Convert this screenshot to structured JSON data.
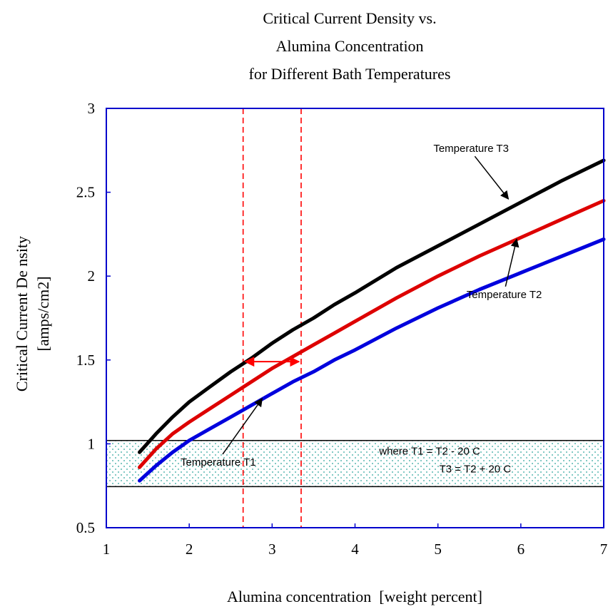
{
  "chart_data": {
    "type": "line",
    "title_lines": [
      "Critical Current Density vs.",
      "Alumina Concentration",
      "for Different Bath Temperatures"
    ],
    "xlabel": "Alumina concentration  [weight percent]",
    "ylabel_lines": [
      "Critical Current De nsity",
      "[amps/cm2]"
    ],
    "xlim": [
      1,
      7
    ],
    "ylim": [
      0.5,
      3
    ],
    "x_ticks": [
      1,
      2,
      3,
      4,
      5,
      6,
      7
    ],
    "x_tick_labels": [
      "1",
      "2",
      "3",
      "4",
      "5",
      "6",
      "7"
    ],
    "y_ticks": [
      0.5,
      1,
      1.5,
      2,
      2.5,
      3
    ],
    "y_tick_labels": [
      "0.5",
      "1",
      "1.5",
      "2",
      "2.5",
      "3"
    ],
    "series": [
      {
        "name": "Temperature T3",
        "color": "#000000",
        "x": [
          1.4,
          1.6,
          1.8,
          2,
          2.25,
          2.5,
          2.75,
          3,
          3.25,
          3.5,
          3.75,
          4,
          4.5,
          5,
          5.5,
          6,
          6.5,
          7
        ],
        "y": [
          0.95,
          1.06,
          1.16,
          1.25,
          1.34,
          1.43,
          1.51,
          1.6,
          1.68,
          1.75,
          1.83,
          1.9,
          2.05,
          2.18,
          2.31,
          2.44,
          2.57,
          2.69
        ]
      },
      {
        "name": "Temperature T2",
        "color": "#dd0000",
        "x": [
          1.4,
          1.6,
          1.8,
          2,
          2.25,
          2.5,
          2.75,
          3,
          3.25,
          3.5,
          3.75,
          4,
          4.5,
          5,
          5.5,
          6,
          6.5,
          7
        ],
        "y": [
          0.86,
          0.97,
          1.06,
          1.13,
          1.21,
          1.29,
          1.37,
          1.45,
          1.52,
          1.59,
          1.66,
          1.73,
          1.87,
          2.0,
          2.12,
          2.23,
          2.34,
          2.45
        ]
      },
      {
        "name": "Temperature T1",
        "color": "#0000dd",
        "x": [
          1.4,
          1.6,
          1.8,
          2,
          2.25,
          2.5,
          2.75,
          3,
          3.25,
          3.5,
          3.75,
          4,
          4.5,
          5,
          5.5,
          6,
          6.5,
          7
        ],
        "y": [
          0.78,
          0.87,
          0.95,
          1.02,
          1.09,
          1.16,
          1.23,
          1.3,
          1.37,
          1.43,
          1.5,
          1.56,
          1.69,
          1.81,
          1.92,
          2.02,
          2.12,
          2.22
        ]
      }
    ],
    "reference_lines": {
      "vertical_x": [
        2.65,
        3.35
      ],
      "color": "#ff0000",
      "style": "dashed"
    },
    "double_arrow": {
      "x_from": 2.65,
      "x_to": 3.35,
      "y": 1.49,
      "color": "#ff0000"
    },
    "shaded_band": {
      "y_from": 0.745,
      "y_to": 1.02,
      "pattern": "dotted",
      "color": "#2aa39a"
    },
    "annotations": [
      {
        "text": "Temperature T3",
        "label_x": 5.4,
        "label_y": 2.74,
        "arrow_to_x": 5.85,
        "arrow_to_y": 2.46
      },
      {
        "text": "Temperature T2",
        "label_x": 5.8,
        "label_y": 1.87,
        "arrow_to_x": 5.95,
        "arrow_to_y": 2.22
      },
      {
        "text": "Temperature T1",
        "label_x": 2.35,
        "label_y": 0.87,
        "arrow_to_x": 2.88,
        "arrow_to_y": 1.27
      }
    ],
    "band_notes": [
      {
        "text": "where T1 = T2 - 20 C",
        "x": 4.9,
        "y": 0.935
      },
      {
        "text": "T3 = T2 + 20 C",
        "x": 5.45,
        "y": 0.83
      }
    ],
    "grid": false
  }
}
